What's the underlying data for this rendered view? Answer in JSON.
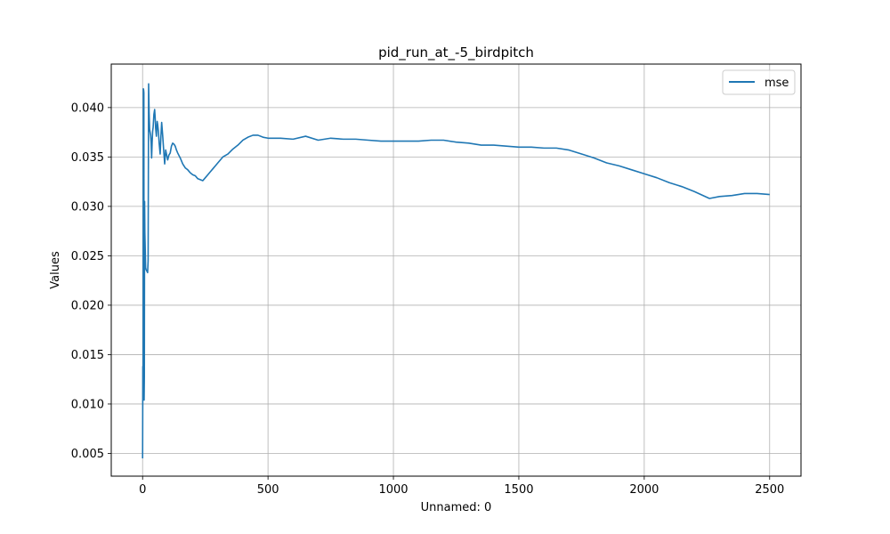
{
  "chart_data": {
    "type": "line",
    "title": "pid_run_at_-5_birdpitch",
    "xlabel": "Unnamed: 0",
    "ylabel": "Values",
    "xlim": [
      -125,
      2625
    ],
    "ylim": [
      0.0027,
      0.0444
    ],
    "xticks": [
      0,
      500,
      1000,
      1500,
      2000,
      2500
    ],
    "xtick_labels": [
      "0",
      "500",
      "1000",
      "1500",
      "2000",
      "2500"
    ],
    "yticks": [
      0.005,
      0.01,
      0.015,
      0.02,
      0.025,
      0.03,
      0.035,
      0.04
    ],
    "ytick_labels": [
      "0.005",
      "0.010",
      "0.015",
      "0.020",
      "0.025",
      "0.030",
      "0.035",
      "0.040"
    ],
    "grid": true,
    "legend_position": "upper right",
    "line_color": "#1f77b4",
    "series": [
      {
        "name": "mse",
        "x": [
          0,
          1,
          2,
          3,
          4,
          5,
          6,
          7,
          8,
          9,
          10,
          12,
          14,
          16,
          18,
          20,
          22,
          24,
          26,
          28,
          30,
          32,
          34,
          36,
          38,
          40,
          42,
          45,
          48,
          50,
          52,
          55,
          58,
          60,
          63,
          66,
          70,
          73,
          76,
          80,
          84,
          88,
          92,
          96,
          100,
          105,
          110,
          115,
          120,
          125,
          130,
          135,
          140,
          150,
          160,
          170,
          180,
          190,
          200,
          210,
          220,
          230,
          240,
          250,
          260,
          270,
          280,
          290,
          300,
          320,
          340,
          360,
          380,
          400,
          420,
          440,
          460,
          480,
          500,
          550,
          600,
          650,
          700,
          750,
          800,
          850,
          900,
          950,
          1000,
          1050,
          1100,
          1150,
          1200,
          1250,
          1300,
          1350,
          1400,
          1450,
          1500,
          1550,
          1600,
          1650,
          1700,
          1750,
          1800,
          1850,
          1900,
          1950,
          2000,
          2050,
          2100,
          2150,
          2200,
          2260,
          2300,
          2350,
          2400,
          2450,
          2500
        ],
        "y": [
          0.0045,
          0.0138,
          0.0105,
          0.0419,
          0.0418,
          0.0415,
          0.0104,
          0.0128,
          0.0305,
          0.0273,
          0.0262,
          0.0238,
          0.0236,
          0.0235,
          0.0234,
          0.0233,
          0.0245,
          0.0424,
          0.0395,
          0.0378,
          0.0375,
          0.0372,
          0.0365,
          0.0349,
          0.0365,
          0.0376,
          0.038,
          0.0393,
          0.0398,
          0.039,
          0.0379,
          0.0371,
          0.0386,
          0.0383,
          0.0376,
          0.0364,
          0.0353,
          0.0371,
          0.0385,
          0.0372,
          0.0357,
          0.0343,
          0.0357,
          0.0352,
          0.0347,
          0.0352,
          0.0354,
          0.0361,
          0.0364,
          0.0363,
          0.0361,
          0.0357,
          0.0354,
          0.0349,
          0.0343,
          0.0339,
          0.0337,
          0.0334,
          0.0332,
          0.0331,
          0.0328,
          0.0327,
          0.0326,
          0.0329,
          0.0332,
          0.0335,
          0.0338,
          0.0341,
          0.0344,
          0.035,
          0.0353,
          0.0358,
          0.0362,
          0.0367,
          0.037,
          0.0372,
          0.0372,
          0.037,
          0.0369,
          0.0369,
          0.0368,
          0.0371,
          0.0367,
          0.0369,
          0.0368,
          0.0368,
          0.0367,
          0.0366,
          0.0366,
          0.0366,
          0.0366,
          0.0367,
          0.0367,
          0.0365,
          0.0364,
          0.0362,
          0.0362,
          0.0361,
          0.036,
          0.036,
          0.0359,
          0.0359,
          0.0357,
          0.0353,
          0.0349,
          0.0344,
          0.0341,
          0.0337,
          0.0333,
          0.0329,
          0.0324,
          0.032,
          0.0315,
          0.0308,
          0.031,
          0.0311,
          0.0313,
          0.0313,
          0.0312
        ]
      }
    ]
  }
}
